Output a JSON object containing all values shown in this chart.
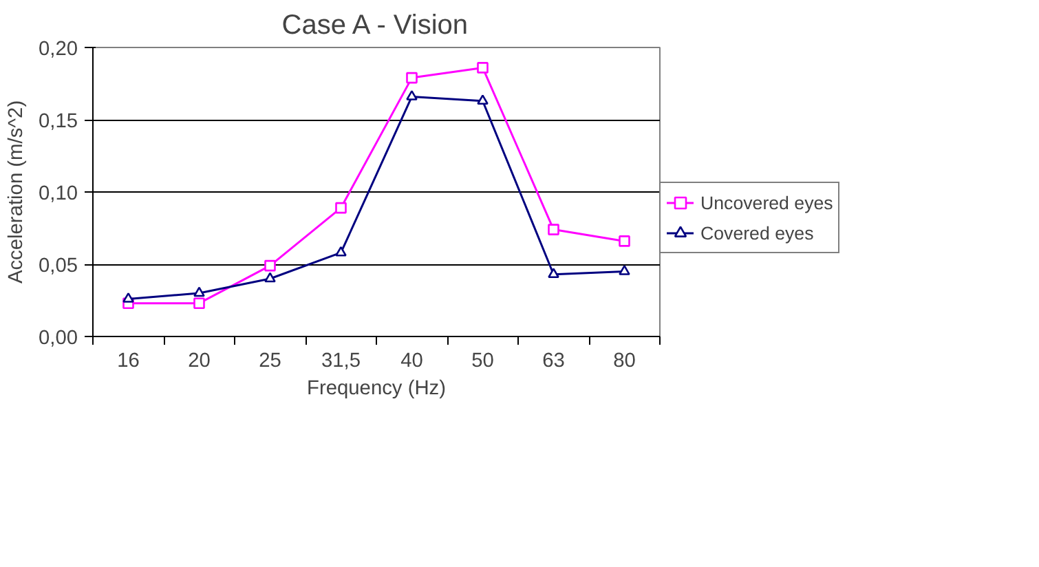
{
  "chart_data": {
    "type": "line",
    "title": "Case A - Vision",
    "xlabel": "Frequency (Hz)",
    "ylabel": "Acceleration (m/s^2)",
    "categories": [
      "16",
      "20",
      "25",
      "31,5",
      "40",
      "50",
      "63",
      "80"
    ],
    "series": [
      {
        "name": "Uncovered eyes",
        "color": "#ff00ff",
        "marker": "square",
        "values": [
          0.023,
          0.023,
          0.049,
          0.089,
          0.179,
          0.186,
          0.074,
          0.066
        ]
      },
      {
        "name": "Covered eyes",
        "color": "#000080",
        "marker": "triangle",
        "values": [
          0.026,
          0.03,
          0.04,
          0.058,
          0.166,
          0.163,
          0.043,
          0.045
        ]
      }
    ],
    "ylim": [
      0,
      0.2
    ],
    "yticks": [
      {
        "value": 0,
        "label": "0,00"
      },
      {
        "value": 0.05,
        "label": "0,05"
      },
      {
        "value": 0.1,
        "label": "0,10"
      },
      {
        "value": 0.15,
        "label": "0,15"
      },
      {
        "value": 0.2,
        "label": "0,20"
      }
    ],
    "grid": "y",
    "legend": "right",
    "line_style": "solid"
  }
}
